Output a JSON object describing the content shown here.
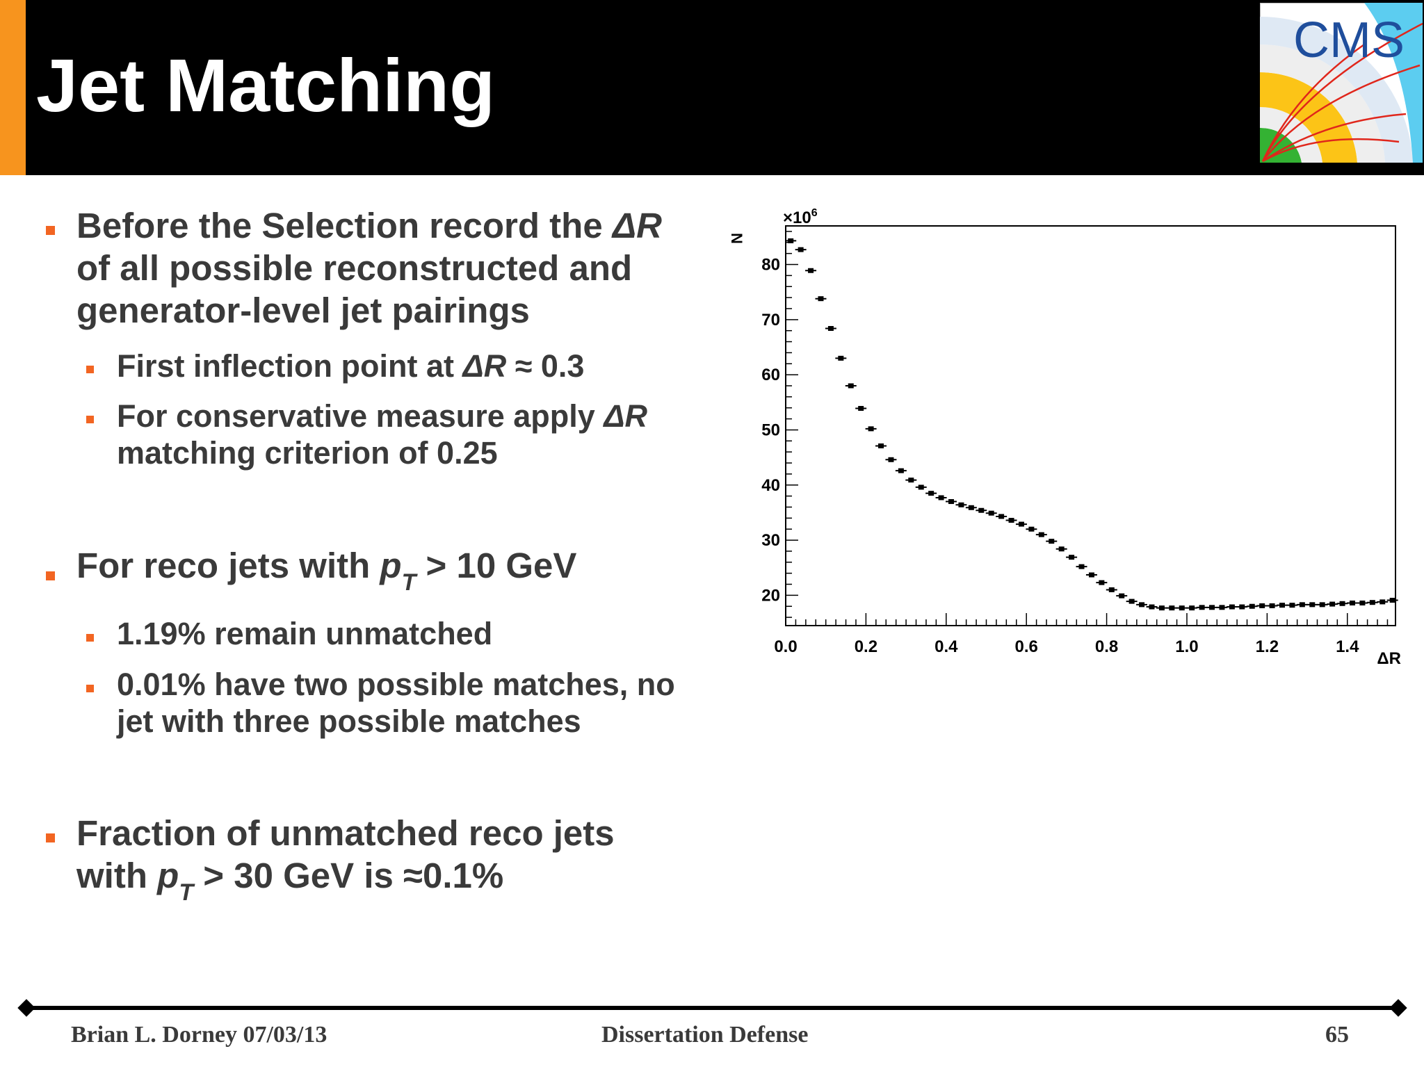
{
  "slide": {
    "title": "Jet Matching"
  },
  "bullets": {
    "b1_line1_pre": "Before the Selection record the ",
    "b1_dr": "ΔR",
    "b1_line2": "of all possible reconstructed and",
    "b1_line3": "generator-level jet pairings",
    "s1_pre": "First inflection point at ",
    "s1_dr": "ΔR",
    "s1_post": " ≈ 0.3",
    "s2_pre": "For conservative measure apply ",
    "s2_dr": "ΔR",
    "s2_line2": "matching criterion of 0.25",
    "b2_pre": "For reco jets with ",
    "b2_p": "p",
    "b2_t": "T",
    "b2_post": " > 10 GeV",
    "s3": "1.19% remain unmatched",
    "s4_line1": "0.01% have two possible matches, no",
    "s4_line2": "jet with three possible matches",
    "b3_line1": "Fraction of unmatched reco jets",
    "b3_pre": "with ",
    "b3_p": "p",
    "b3_t": "T",
    "b3_post": " > 30 GeV is ≈0.1%"
  },
  "logo": {
    "text": "CMS"
  },
  "footer": {
    "author_date": "Brian L. Dorney 07/03/13",
    "event": "Dissertation Defense",
    "page": "65"
  },
  "chart_data": {
    "type": "scatter",
    "xlabel": "ΔR",
    "ylabel": "N",
    "y_multiplier_label": "×10",
    "y_multiplier_exp": "6",
    "xlim": [
      0.0,
      1.52
    ],
    "ylim": [
      14.5,
      87
    ],
    "x_ticks": [
      "0.0",
      "0.2",
      "0.4",
      "0.6",
      "0.8",
      "1.0",
      "1.2",
      "1.4"
    ],
    "x_tick_values": [
      0.0,
      0.2,
      0.4,
      0.6,
      0.8,
      1.0,
      1.2,
      1.4
    ],
    "y_ticks": [
      "20",
      "30",
      "40",
      "50",
      "60",
      "70",
      "80"
    ],
    "y_tick_values": [
      20,
      30,
      40,
      50,
      60,
      70,
      80
    ],
    "series": [
      {
        "x": [
          0.0125,
          0.0375,
          0.0625,
          0.0875,
          0.1125,
          0.1375,
          0.1625,
          0.1875,
          0.2125,
          0.2375,
          0.2625,
          0.2875,
          0.3125,
          0.3375,
          0.3625,
          0.3875,
          0.4125,
          0.4375,
          0.4625,
          0.4875,
          0.5125,
          0.5375,
          0.5625,
          0.5875,
          0.6125,
          0.6375,
          0.6625,
          0.6875,
          0.7125,
          0.7375,
          0.7625,
          0.7875,
          0.8125,
          0.8375,
          0.8625,
          0.8875,
          0.9125,
          0.9375,
          0.9625,
          0.9875,
          1.0125,
          1.0375,
          1.0625,
          1.0875,
          1.1125,
          1.1375,
          1.1625,
          1.1875,
          1.2125,
          1.2375,
          1.2625,
          1.2875,
          1.3125,
          1.3375,
          1.3625,
          1.3875,
          1.4125,
          1.4375,
          1.4625,
          1.4875,
          1.5125
        ],
        "y": [
          84.3,
          82.7,
          78.9,
          73.8,
          68.4,
          63.0,
          58.0,
          53.9,
          50.2,
          47.1,
          44.6,
          42.6,
          40.9,
          39.6,
          38.5,
          37.7,
          37.0,
          36.4,
          35.9,
          35.4,
          34.9,
          34.3,
          33.6,
          32.9,
          32.0,
          31.0,
          29.8,
          28.4,
          26.9,
          25.2,
          23.7,
          22.3,
          21.0,
          19.9,
          18.9,
          18.3,
          17.9,
          17.7,
          17.7,
          17.7,
          17.7,
          17.8,
          17.8,
          17.8,
          17.9,
          17.9,
          18.0,
          18.1,
          18.1,
          18.2,
          18.2,
          18.3,
          18.3,
          18.3,
          18.4,
          18.5,
          18.6,
          18.6,
          18.7,
          18.8,
          19.1
        ]
      }
    ]
  }
}
